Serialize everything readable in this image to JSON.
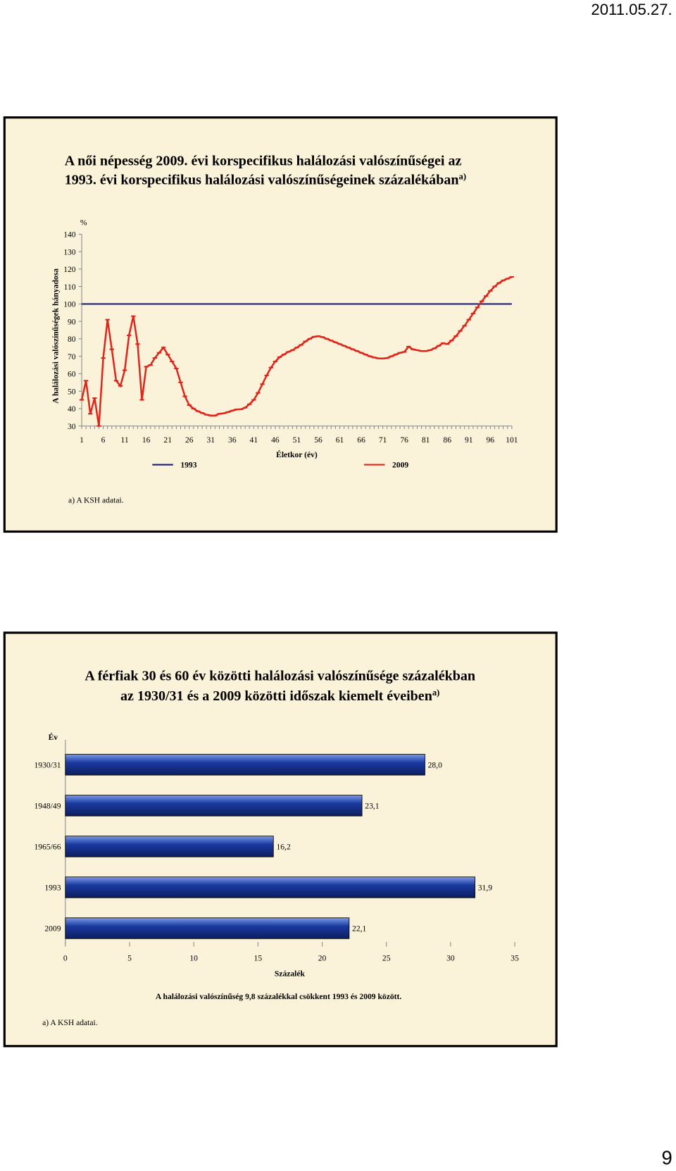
{
  "header": {
    "date": "2011.05.27."
  },
  "page_number": "9",
  "chart_data": [
    {
      "type": "line",
      "title": [
        "A női népesség 2009. évi korspecifikus halálozási valószínűségei az",
        "1993. évi korspecifikus halálozási valószínűségeinek százalékában"
      ],
      "title_note": "a)",
      "y_unit": "%",
      "y_label": "A halálozási valószínűségek hányadosa",
      "x_label": "Életkor (év)",
      "footnote": "a) A KSH adatai.",
      "x": [
        1,
        2,
        3,
        4,
        5,
        6,
        7,
        8,
        9,
        10,
        11,
        12,
        13,
        14,
        15,
        16,
        17,
        18,
        19,
        20,
        21,
        22,
        23,
        24,
        25,
        26,
        27,
        28,
        29,
        30,
        31,
        32,
        33,
        34,
        35,
        36,
        37,
        38,
        39,
        40,
        41,
        42,
        43,
        44,
        45,
        46,
        47,
        48,
        49,
        50,
        51,
        52,
        53,
        54,
        55,
        56,
        57,
        58,
        59,
        60,
        61,
        62,
        63,
        64,
        65,
        66,
        67,
        68,
        69,
        70,
        71,
        72,
        73,
        74,
        75,
        76,
        77,
        78,
        79,
        80,
        81,
        82,
        83,
        84,
        85,
        86,
        87,
        88,
        89,
        90,
        91,
        92,
        93,
        94,
        95,
        96,
        97,
        98,
        99,
        100,
        101
      ],
      "xlim": [
        1,
        101
      ],
      "xticks": [
        1,
        6,
        11,
        16,
        21,
        26,
        31,
        36,
        41,
        46,
        51,
        56,
        61,
        66,
        71,
        76,
        81,
        86,
        91,
        96,
        101
      ],
      "ylim": [
        30,
        140
      ],
      "yticks": [
        30,
        40,
        50,
        60,
        70,
        80,
        90,
        100,
        110,
        120,
        130,
        140
      ],
      "series": [
        {
          "name": "1993",
          "color": "#1c1c78",
          "values": [
            100,
            100,
            100,
            100,
            100,
            100,
            100,
            100,
            100,
            100,
            100,
            100,
            100,
            100,
            100,
            100,
            100,
            100,
            100,
            100,
            100,
            100,
            100,
            100,
            100,
            100,
            100,
            100,
            100,
            100,
            100,
            100,
            100,
            100,
            100,
            100,
            100,
            100,
            100,
            100,
            100,
            100,
            100,
            100,
            100,
            100,
            100,
            100,
            100,
            100,
            100,
            100,
            100,
            100,
            100,
            100,
            100,
            100,
            100,
            100,
            100,
            100,
            100,
            100,
            100,
            100,
            100,
            100,
            100,
            100,
            100,
            100,
            100,
            100,
            100,
            100,
            100,
            100,
            100,
            100,
            100,
            100,
            100,
            100,
            100,
            100,
            100,
            100,
            100,
            100,
            100,
            100,
            100,
            100,
            100,
            100,
            100,
            100,
            100,
            100,
            100
          ]
        },
        {
          "name": "2009",
          "color": "#e0261c",
          "values": [
            45,
            56,
            37,
            46,
            30,
            69,
            91,
            74,
            56,
            53,
            62,
            82,
            93,
            77,
            45,
            64,
            65,
            69,
            72,
            75,
            71,
            67,
            63,
            55,
            47,
            42,
            40,
            38.5,
            37.5,
            36.5,
            36,
            36,
            37,
            37.3,
            38,
            38.8,
            39.5,
            39.6,
            40.5,
            42.5,
            45,
            49,
            54,
            59,
            63.5,
            67,
            69.5,
            71,
            72.5,
            73.5,
            75,
            76.5,
            78.5,
            80,
            81.2,
            81.5,
            81,
            80,
            79,
            78,
            77,
            76,
            75,
            74,
            73,
            72,
            71,
            70,
            69.3,
            68.8,
            68.7,
            69,
            70,
            71,
            72,
            72.5,
            75.5,
            74,
            73.5,
            73,
            73,
            73.5,
            74.5,
            76,
            77.5,
            77,
            79,
            81.5,
            84.5,
            87.5,
            91,
            94.5,
            98,
            101.5,
            104.5,
            107.5,
            110,
            112,
            113.5,
            114.5,
            115.5
          ]
        }
      ]
    },
    {
      "type": "hbar",
      "title": [
        "A férfiak 30 és 60 év közötti halálozási valószínűsége százalékban",
        "az 1930/31 és a 2009 közötti időszak kiemelt éveiben"
      ],
      "title_note": "a)",
      "y_label": "Év",
      "x_label": "Százalék",
      "annotation": "A halálozási valószínűség 9,8 százalékkal csökkent 1993 és 2009 között.",
      "footnote": "a) A KSH adatai.",
      "categories": [
        "1930/31",
        "1948/49",
        "1965/66",
        "1993",
        "2009"
      ],
      "values": [
        28.0,
        23.1,
        16.2,
        31.9,
        22.1
      ],
      "value_labels": [
        "28,0",
        "23,1",
        "16,2",
        "31,9",
        "22,1"
      ],
      "color": "#1a3aa0",
      "xlim": [
        0,
        35
      ],
      "xticks": [
        0,
        5,
        10,
        15,
        20,
        25,
        30,
        35
      ]
    }
  ]
}
